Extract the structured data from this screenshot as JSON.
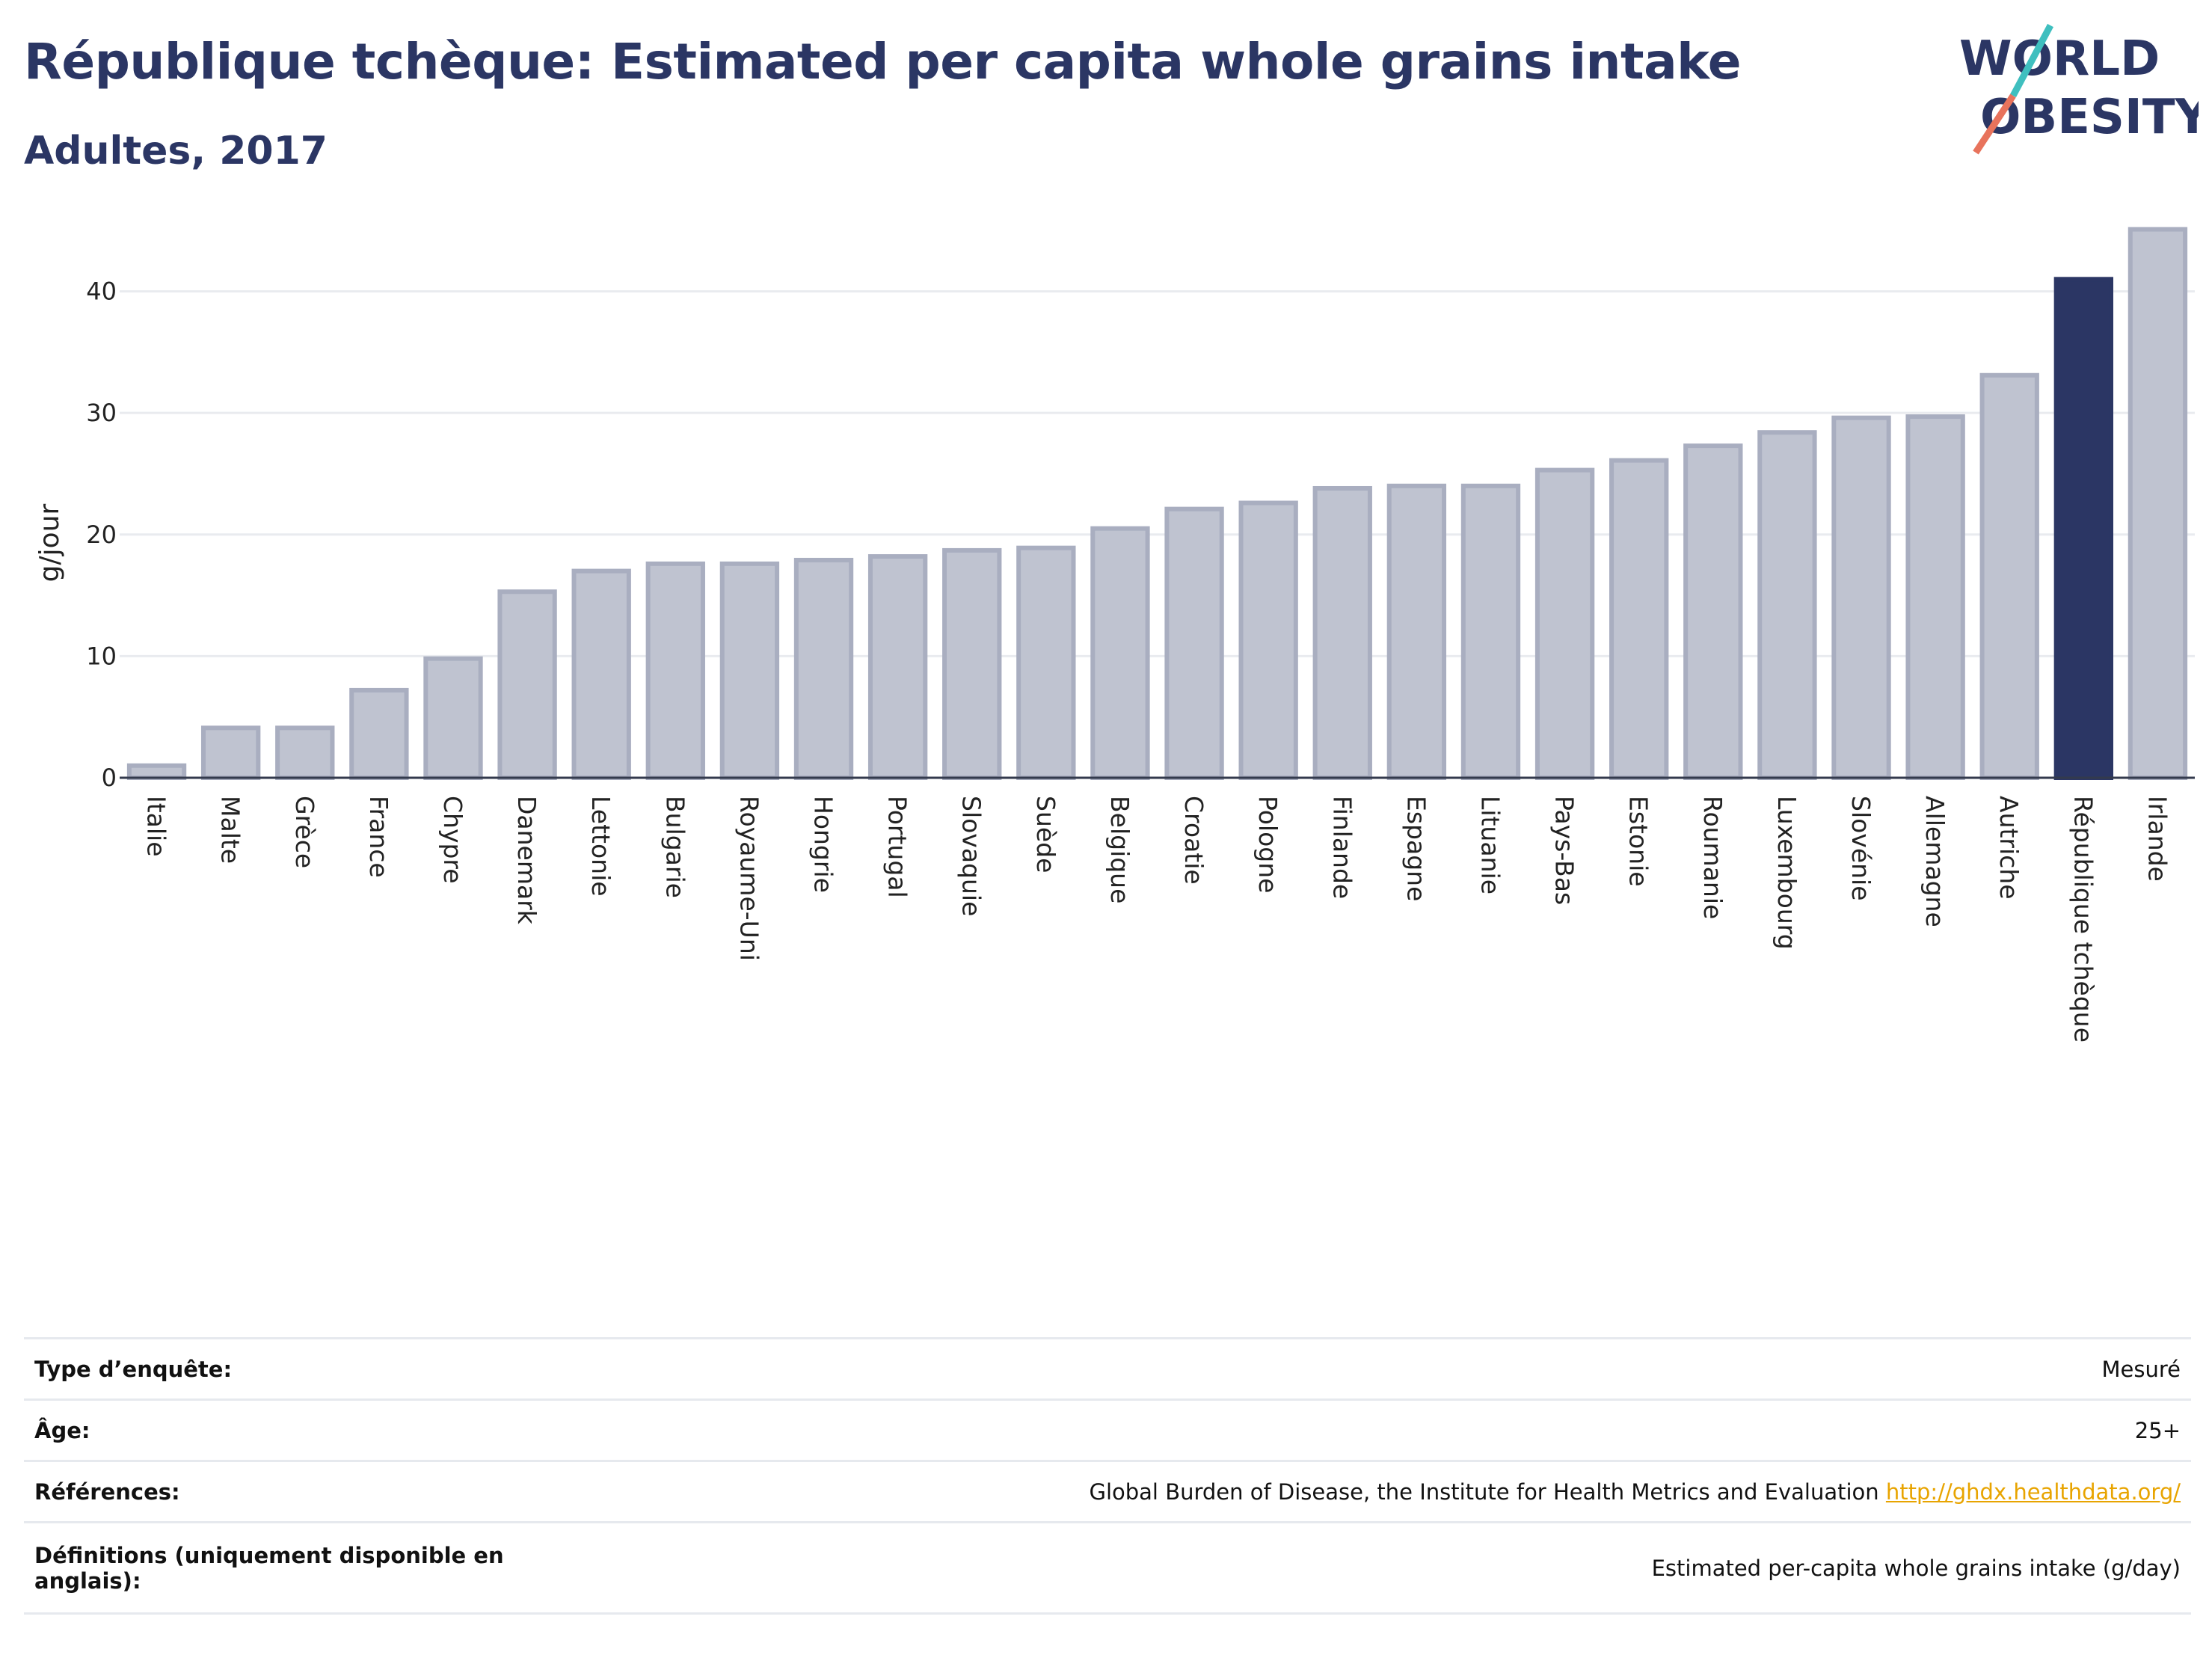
{
  "header": {
    "title": "République tchèque: Estimated per capita whole grains intake",
    "subtitle": "Adultes, 2017"
  },
  "logo": {
    "line1": "WORLD",
    "line2": "OBESITY"
  },
  "colors": {
    "highlight": "#2b3664",
    "bar_fill": "#bfc3d0",
    "bar_stroke": "#a9aec0",
    "grid": "#e9ebef",
    "logo_teal": "#3fbfbf",
    "logo_coral": "#e8735c"
  },
  "chart_data": {
    "type": "bar",
    "ylabel": "g/jour",
    "ylim": [
      0,
      46
    ],
    "yticks": [
      0,
      10,
      20,
      30,
      40
    ],
    "grid": true,
    "highlight": "République tchèque",
    "categories": [
      "Italie",
      "Malte",
      "Grèce",
      "France",
      "Chypre",
      "Danemark",
      "Lettonie",
      "Bulgarie",
      "Royaume-Uni",
      "Hongrie",
      "Portugal",
      "Slovaquie",
      "Suède",
      "Belgique",
      "Croatie",
      "Pologne",
      "Finlande",
      "Espagne",
      "Lituanie",
      "Pays-Bas",
      "Estonie",
      "Roumanie",
      "Luxembourg",
      "Slovénie",
      "Allemagne",
      "Autriche",
      "République tchèque",
      "Irlande"
    ],
    "values": [
      1.0,
      4.1,
      4.1,
      7.2,
      9.8,
      15.3,
      17.0,
      17.6,
      17.6,
      17.9,
      18.2,
      18.7,
      18.9,
      20.5,
      22.1,
      22.6,
      23.8,
      24.0,
      24.0,
      25.3,
      26.1,
      27.3,
      28.4,
      29.6,
      29.7,
      33.1,
      41.0,
      45.1
    ]
  },
  "meta": {
    "rows": [
      {
        "key": "Type d’enquête:",
        "value": "Mesuré"
      },
      {
        "key": "Âge:",
        "value": "25+"
      },
      {
        "key": "Références:",
        "value": "Global Burden of Disease, the Institute for Health Metrics and Evaluation",
        "link": "http://ghdx.healthdata.org/"
      },
      {
        "key": "Définitions (uniquement disponible en anglais):",
        "value": "Estimated per-capita whole grains intake (g/day)"
      }
    ]
  }
}
